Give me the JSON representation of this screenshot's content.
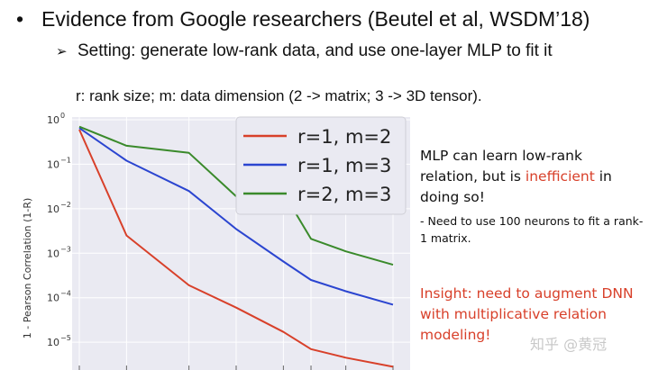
{
  "slide": {
    "bullet": "Evidence from Google researchers (Beutel et al, WSDM’18)",
    "sub_bullet": "Setting: generate low-rank data, and use one-layer MLP to fit it",
    "note": "r: rank size;  m: data dimension (2 -> matrix; 3 -> 3D tensor)."
  },
  "side_text": {
    "main_before": "MLP can learn low-rank relation, but is ",
    "main_highlight": "inefficient",
    "main_after": " in doing so!",
    "sub": "- Need to use 100 neurons to fit a rank-1 matrix.",
    "insight": "Insight: need to augment DNN with multiplicative relation modeling!"
  },
  "watermark": "知乎 @黄冠",
  "colors": {
    "highlight": "#d8402a"
  },
  "chart_data": {
    "type": "line",
    "ylabel": "1 - Pearson Correlation (1-R)",
    "y_scale": "log",
    "ylim": [
      5e-06,
      1
    ],
    "y_ticks": [
      {
        "value": 1,
        "base": "10",
        "exp": "0"
      },
      {
        "value": 0.1,
        "base": "10",
        "exp": "−1"
      },
      {
        "value": 0.01,
        "base": "10",
        "exp": "−2"
      },
      {
        "value": 0.001,
        "base": "10",
        "exp": "−3"
      },
      {
        "value": 0.0001,
        "base": "10",
        "exp": "−4"
      },
      {
        "value": 1e-05,
        "base": "10",
        "exp": "−5"
      }
    ],
    "x": [
      1,
      2,
      5,
      10,
      20,
      30,
      50,
      100
    ],
    "x_tick_labels": [],
    "grid": true,
    "legend_position": "top-right",
    "series": [
      {
        "name": "r=1, m=2",
        "color": "#d8402a",
        "values": [
          0.6,
          0.0025,
          0.00019,
          6e-05,
          1.7e-05,
          7e-06,
          4.5e-06,
          2.8e-06
        ]
      },
      {
        "name": "r=1, m=3",
        "color": "#2b45d0",
        "values": [
          0.65,
          0.12,
          0.025,
          0.0035,
          0.00065,
          0.00025,
          0.00014,
          7e-05
        ]
      },
      {
        "name": "r=2, m=3",
        "color": "#3a8a2b",
        "values": [
          0.7,
          0.26,
          0.18,
          0.019,
          0.023,
          0.0021,
          0.0011,
          0.00055
        ]
      }
    ]
  }
}
